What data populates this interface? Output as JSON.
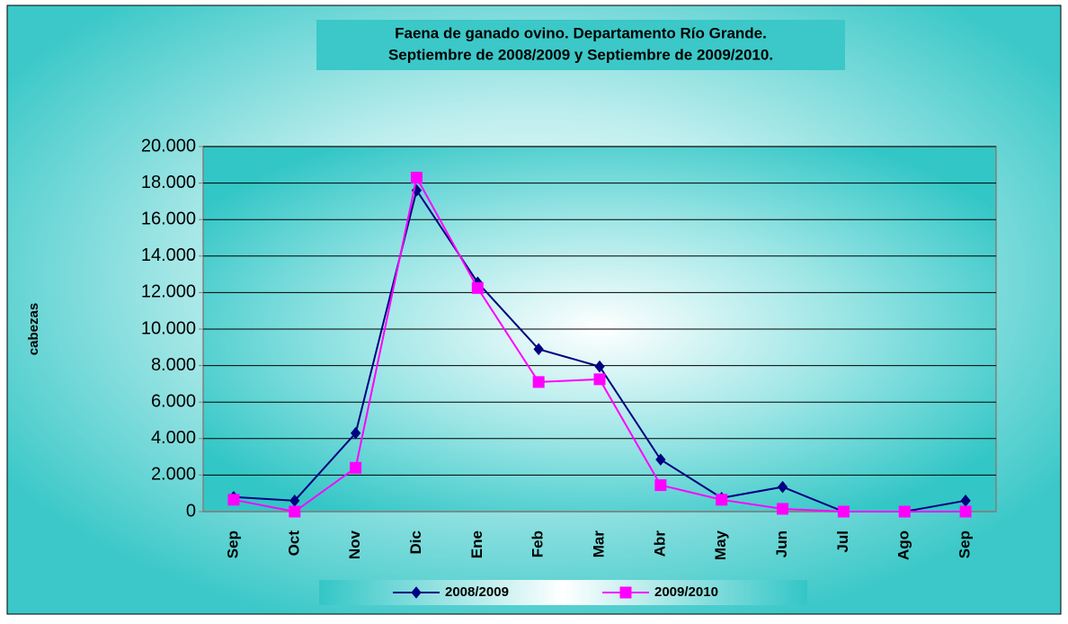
{
  "chart_data": {
    "type": "line",
    "title": "Faena de ganado ovino. Departamento Río Grande.",
    "subtitle": "Septiembre de 2008/2009 y Septiembre de 2009/2010.",
    "y_label": "cabezas",
    "categories": [
      "Sep",
      "Oct",
      "Nov",
      "Dic",
      "Ene",
      "Feb",
      "Mar",
      "Abr",
      "May",
      "Jun",
      "Jul",
      "Ago",
      "Sep"
    ],
    "series": [
      {
        "name": "2008/2009",
        "color": "#000080",
        "marker": "diamond",
        "values": [
          800,
          600,
          4300,
          17600,
          12550,
          8900,
          7950,
          2850,
          750,
          1350,
          0,
          0,
          600
        ]
      },
      {
        "name": "2009/2010",
        "color": "#ff00ff",
        "marker": "square",
        "values": [
          650,
          0,
          2400,
          18300,
          12250,
          7100,
          7250,
          1450,
          650,
          150,
          0,
          0,
          0
        ]
      }
    ],
    "ylim": [
      0,
      20000
    ],
    "yticks": [
      0,
      {
        "value": 2000,
        "label": "2.000"
      },
      {
        "value": 4000,
        "label": "4.000"
      },
      {
        "value": 6000,
        "label": "6.000"
      },
      {
        "value": 8000,
        "label": "8.000"
      },
      {
        "value": 10000,
        "label": "10.000"
      },
      {
        "value": 12000,
        "label": "12.000"
      },
      {
        "value": 14000,
        "label": "14.000"
      },
      {
        "value": 16000,
        "label": "16.000"
      },
      {
        "value": 18000,
        "label": "18.000"
      },
      {
        "value": 20000,
        "label": "20.000"
      }
    ],
    "grid": true,
    "legend": "bottom"
  }
}
